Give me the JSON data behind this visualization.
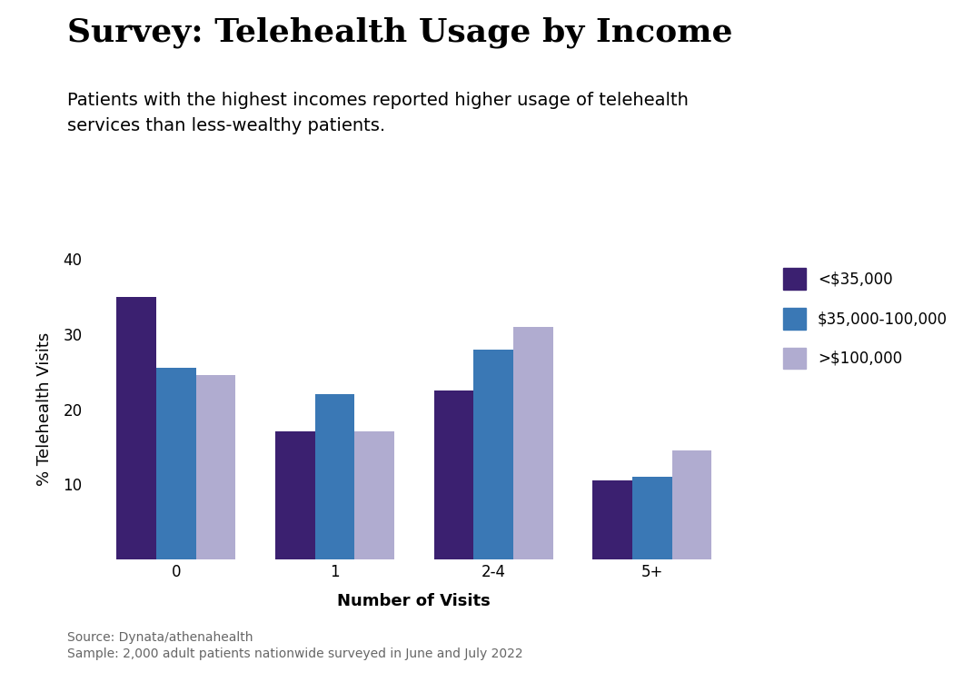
{
  "title": "Survey: Telehealth Usage by Income",
  "subtitle": "Patients with the highest incomes reported higher usage of telehealth\nservices than less-wealthy patients.",
  "categories": [
    "0",
    "1",
    "2-4",
    "5+"
  ],
  "series": [
    {
      "label": "<$35,000",
      "color": "#3b2070",
      "values": [
        35.0,
        17.0,
        22.5,
        10.5
      ]
    },
    {
      "label": "$35,000-100,000",
      "color": "#3a78b5",
      "values": [
        25.5,
        22.0,
        28.0,
        11.0
      ]
    },
    {
      "label": ">$100,000",
      "color": "#b0acd0",
      "values": [
        24.5,
        17.0,
        31.0,
        14.5
      ]
    }
  ],
  "ylabel": "% Telehealth Visits",
  "xlabel": "Number of Visits",
  "ylim": [
    0,
    40
  ],
  "yticks": [
    10,
    20,
    30,
    40
  ],
  "source_line1": "Source: Dynata/athenahealth",
  "source_line2": "Sample: 2,000 adult patients nationwide surveyed in June and July 2022",
  "background_color": "#ffffff",
  "title_fontsize": 26,
  "subtitle_fontsize": 14,
  "axis_label_fontsize": 13,
  "tick_fontsize": 12,
  "legend_fontsize": 12,
  "source_fontsize": 10,
  "bar_width": 0.25
}
